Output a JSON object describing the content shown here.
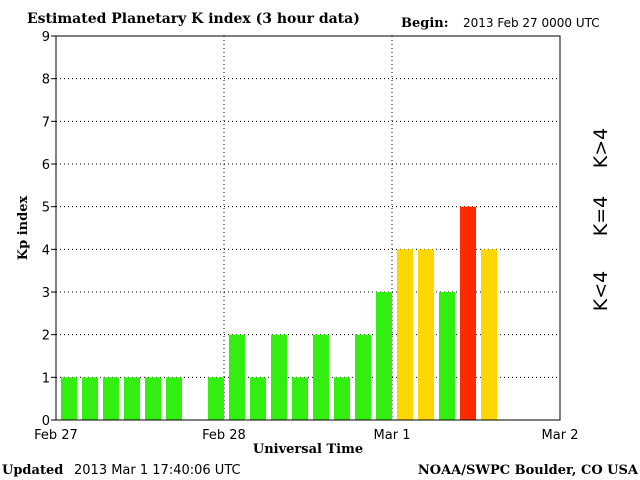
{
  "header": {
    "title": "Estimated Planetary K index (3 hour data)",
    "begin_label": "Begin:",
    "begin_value": "2013 Feb 27 0000 UTC"
  },
  "footer": {
    "updated_label": "Updated",
    "updated_value": "2013 Mar  1 17:40:06 UTC",
    "source": "NOAA/SWPC Boulder, CO USA"
  },
  "legend": [
    {
      "label": "K>4",
      "color": "#ff2a00"
    },
    {
      "label": "K=4",
      "color": "#ffd700"
    },
    {
      "label": "K<4",
      "color": "#33ee11"
    }
  ],
  "chart_data": {
    "type": "bar",
    "title": "Estimated Planetary K index (3 hour data)",
    "xlabel": "Universal Time",
    "ylabel": "Kp index",
    "ylim": [
      0,
      9
    ],
    "yticks": [
      "0",
      "1",
      "2",
      "3",
      "4",
      "5",
      "6",
      "7",
      "8",
      "9"
    ],
    "xticks": [
      "Feb 27",
      "Feb 28",
      "Mar 1",
      "Mar 2"
    ],
    "bins_per_day": 8,
    "grid": true,
    "colors": {
      "low": "#33ee11",
      "equal4": "#ffd700",
      "high": "#ff2a00"
    },
    "values": [
      1,
      1,
      1,
      1,
      1,
      1,
      null,
      1,
      2,
      1,
      2,
      1,
      2,
      1,
      2,
      3,
      4,
      4,
      3,
      5,
      4
    ]
  }
}
